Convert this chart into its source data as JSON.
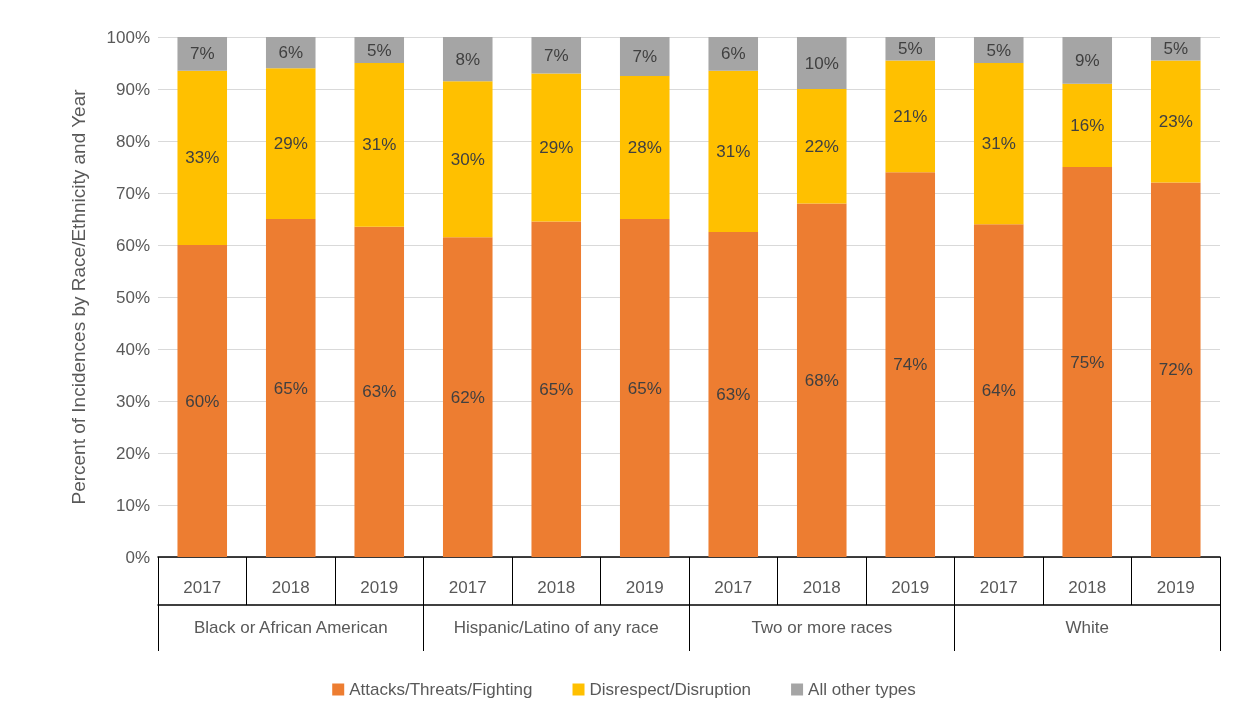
{
  "chart_data": {
    "type": "bar",
    "stacked": true,
    "ylabel": "Percent of Incidences by Race/Ethnicity and Year",
    "categories": [
      "2017",
      "2018",
      "2019",
      "2017",
      "2018",
      "2019",
      "2017",
      "2018",
      "2019",
      "2017",
      "2018",
      "2019"
    ],
    "annotations": [
      "Black or African American",
      "Hispanic/Latino of any race",
      "Two or more races",
      "White"
    ],
    "series": [
      {
        "name": "Attacks/Threats/Fighting",
        "color": "#ed7d31",
        "values": [
          60,
          65,
          63.5,
          61.5,
          64.5,
          65,
          62.5,
          68,
          74,
          64,
          75,
          72
        ],
        "value_labels": [
          "60%",
          "65%",
          "63%",
          "62%",
          "65%",
          "65%",
          "63%",
          "68%",
          "74%",
          "64%",
          "75%",
          "72%"
        ]
      },
      {
        "name": "Disrespect/Disruption",
        "color": "#ffc000",
        "values": [
          33.5,
          29,
          31.5,
          30,
          28.5,
          27.5,
          31,
          22,
          21.5,
          31,
          16,
          23.5
        ],
        "value_labels": [
          "33%",
          "29%",
          "31%",
          "30%",
          "29%",
          "28%",
          "31%",
          "22%",
          "21%",
          "31%",
          "16%",
          "23%"
        ]
      },
      {
        "name": "All other types",
        "color": "#a5a5a5",
        "values": [
          6.5,
          6,
          5,
          8.5,
          7,
          7.5,
          6.5,
          10,
          4.5,
          5,
          9,
          4.5
        ],
        "value_labels": [
          "7%",
          "6%",
          "5%",
          "8%",
          "7%",
          "7%",
          "6%",
          "10%",
          "5%",
          "5%",
          "9%",
          "5%"
        ]
      }
    ],
    "ylim": [
      0,
      100
    ],
    "yticks": [
      {
        "value": 0,
        "label": "0%"
      },
      {
        "value": 10,
        "label": "10%"
      },
      {
        "value": 20,
        "label": "20%"
      },
      {
        "value": 30,
        "label": "30%"
      },
      {
        "value": 40,
        "label": "40%"
      },
      {
        "value": 50,
        "label": "50%"
      },
      {
        "value": 60,
        "label": "60%"
      },
      {
        "value": 70,
        "label": "70%"
      },
      {
        "value": 80,
        "label": "80%"
      },
      {
        "value": 90,
        "label": "90%"
      },
      {
        "value": 100,
        "label": "100%"
      }
    ],
    "grid": "y",
    "legend": "bottom"
  }
}
